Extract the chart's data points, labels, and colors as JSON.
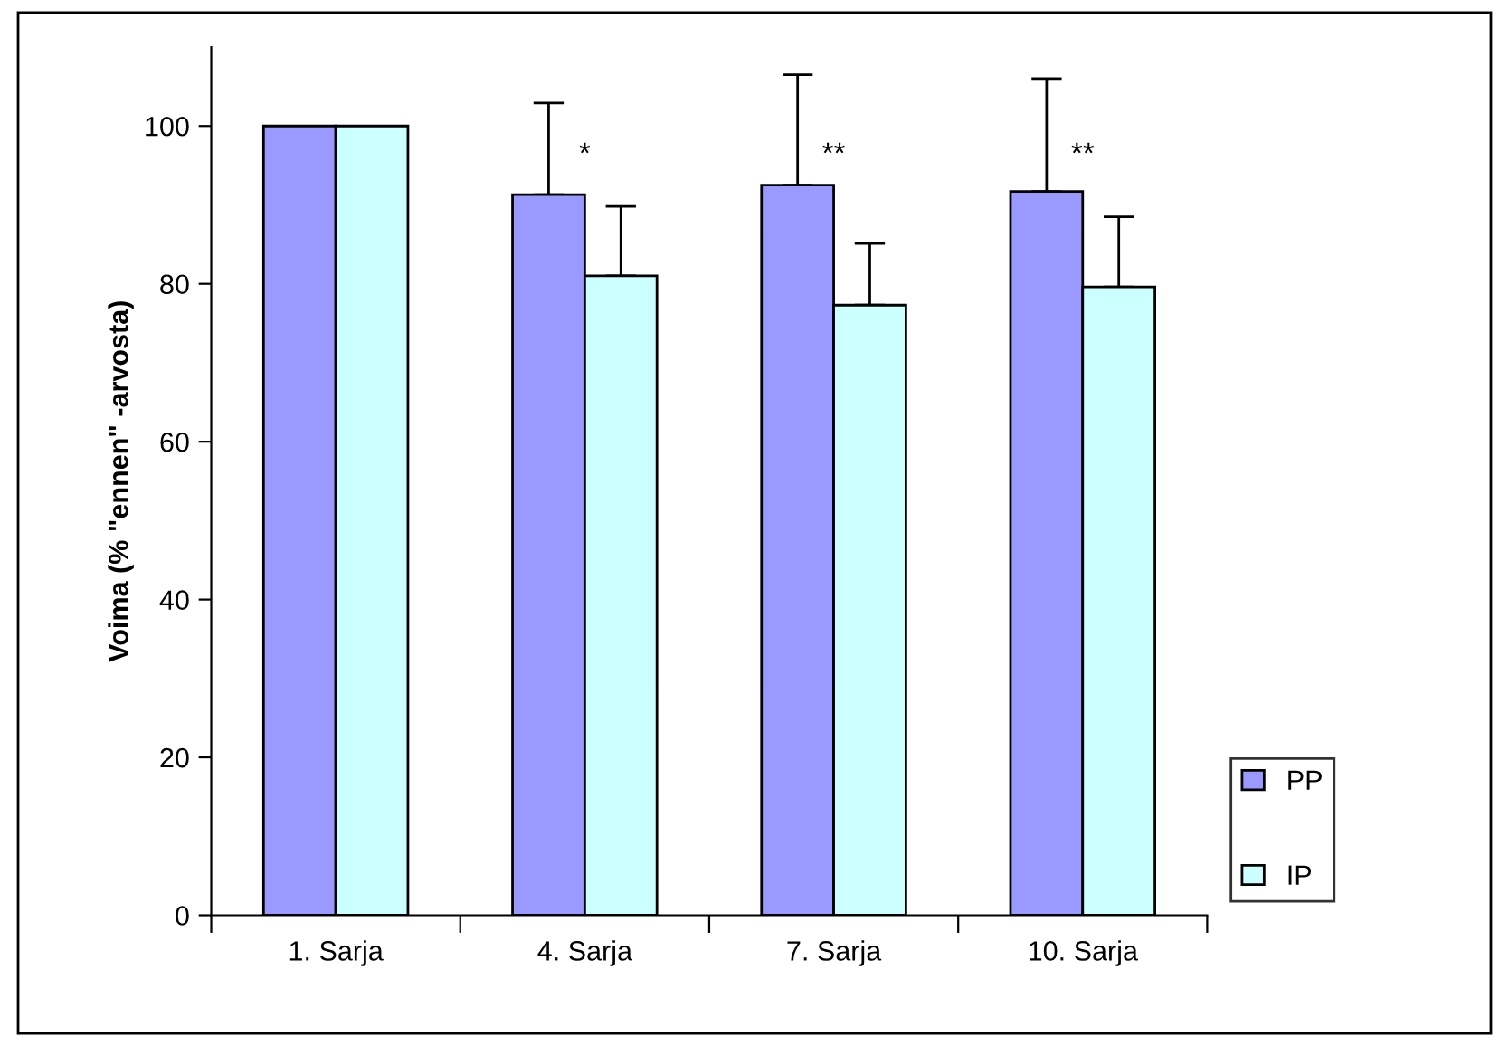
{
  "chart_data": {
    "type": "bar",
    "ylabel": "Voima (% \"ennen\" -arvosta)",
    "categories": [
      "1. Sarja",
      "4. Sarja",
      "7. Sarja",
      "10. Sarja"
    ],
    "series": [
      {
        "name": "PP",
        "color": "#9999ff",
        "values": [
          100,
          91.3,
          92.5,
          91.7
        ],
        "errors": [
          null,
          [
            91.3,
            102.9
          ],
          [
            92.5,
            106.5
          ],
          [
            91.7,
            106.0
          ]
        ]
      },
      {
        "name": "IP",
        "color": "#ccffff",
        "values": [
          100,
          81.0,
          77.3,
          79.6
        ],
        "errors": [
          null,
          [
            81.0,
            89.8
          ],
          [
            77.3,
            85.1
          ],
          [
            79.6,
            88.5
          ]
        ]
      }
    ],
    "ylim": [
      0,
      110
    ],
    "yticks": [
      0,
      20,
      40,
      60,
      80,
      100
    ],
    "grid": false,
    "legend": "bottom right",
    "annotations": [
      "*",
      "**",
      "**"
    ]
  }
}
